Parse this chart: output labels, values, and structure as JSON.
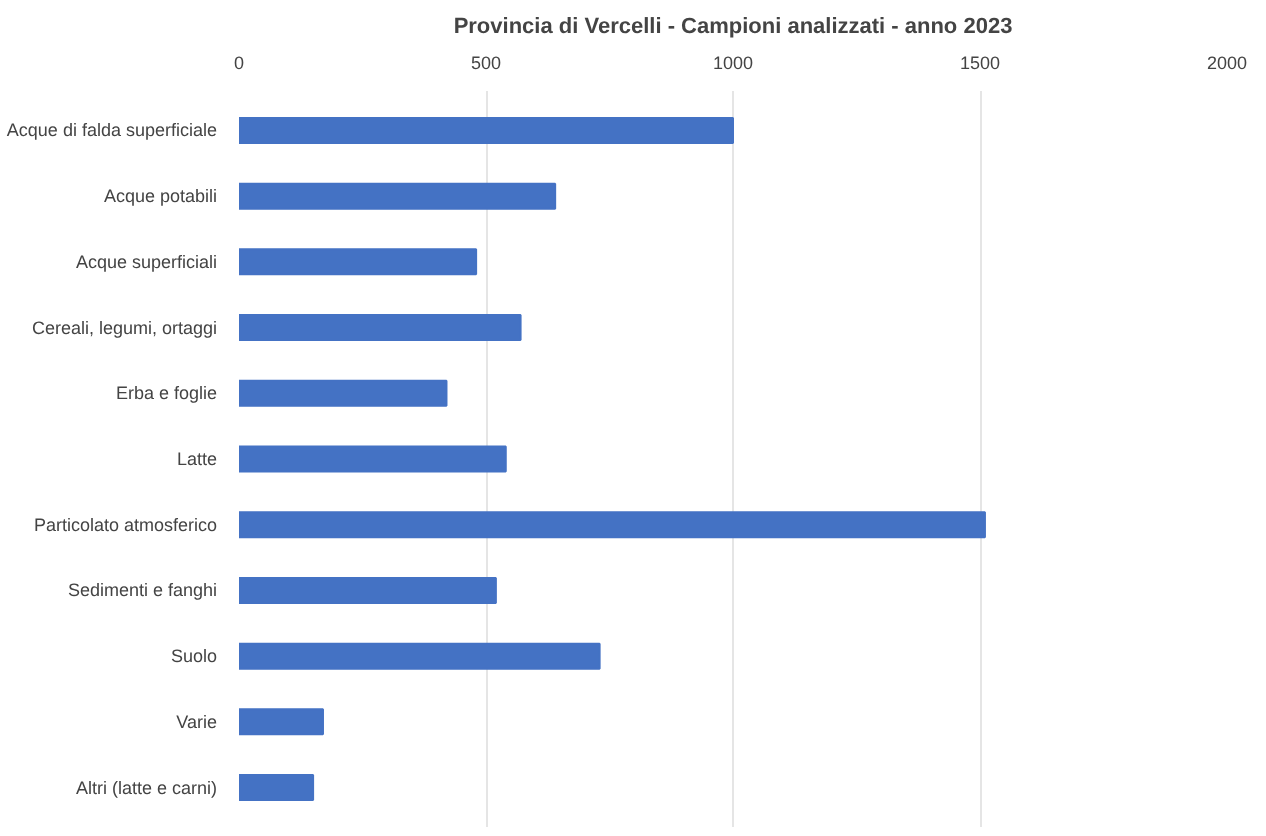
{
  "chart_data": {
    "type": "bar",
    "orientation": "horizontal",
    "title": "Provincia di Vercelli - Campioni analizzati - anno 2023",
    "categories": [
      "Acque di falda superficiale",
      "Acque potabili",
      "Acque superficiali",
      "Cereali, legumi, ortaggi",
      "Erba e foglie",
      "Latte",
      "Particolato atmosferico",
      "Sedimenti e fanghi",
      "Suolo",
      "Varie",
      "Altri (latte e carni)"
    ],
    "values": [
      1000,
      640,
      480,
      570,
      420,
      540,
      1510,
      520,
      730,
      170,
      150
    ],
    "color": "#4472c4",
    "xlim": [
      0,
      2000
    ],
    "xticks": [
      0,
      500,
      1000,
      1500,
      2000
    ],
    "grid": "x"
  }
}
